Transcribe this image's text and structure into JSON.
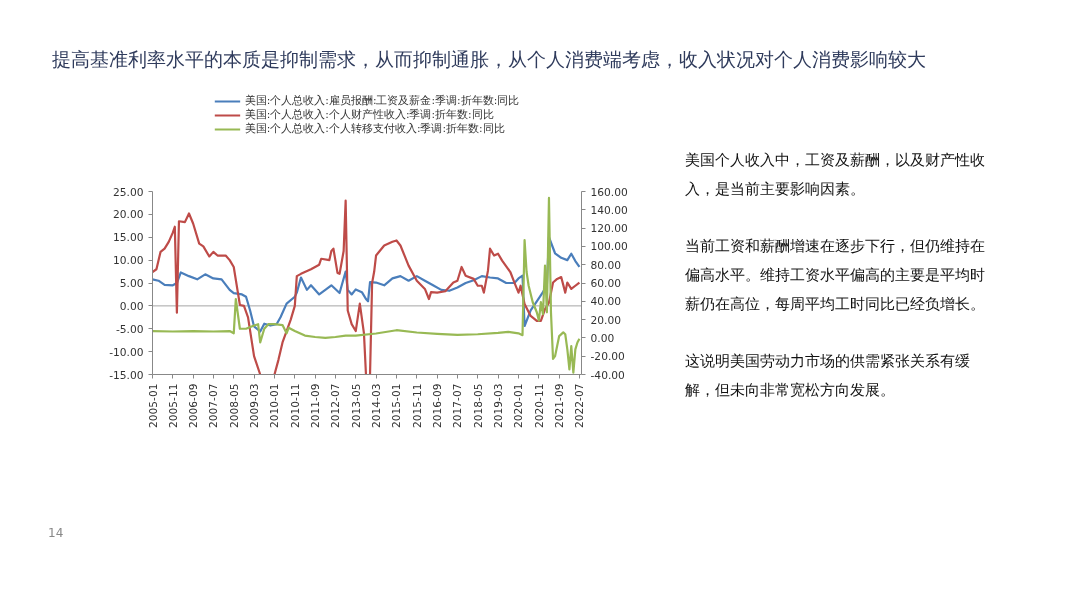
{
  "chart_data": {
    "type": "line",
    "title": "提高基准利率水平的本质是抑制需求，从而抑制通胀，从个人消费端考虑，收入状况对个人消费影响较大",
    "annotations": [
      "美国个人收入中，工资及薪酬，以及财产性收入，是当前主要影响因素。",
      "当前工资和薪酬增速在逐步下行，但仍维持在偏高水平。维持工资水平偏高的主要是平均时薪仍在高位，每周平均工时同比已经负增长。",
      "这说明美国劳动力市场的供需紧张关系有缓解，但未向非常宽松方向发展。",
      "14"
    ],
    "series": [
      {
        "name": "美国:个人总收入:雇员报酬:工资及薪金:季调:折年数:同比",
        "color": "#4a7ebb",
        "x": [
          "2005-01",
          "2005-04",
          "2005-07",
          "2005-11",
          "2006-01",
          "2006-03",
          "2006-07",
          "2006-11",
          "2007-03",
          "2007-07",
          "2007-11",
          "2008-03",
          "2008-05",
          "2008-09",
          "2008-11",
          "2009-01",
          "2009-03",
          "2009-06",
          "2009-08",
          "2009-11",
          "2010-02",
          "2010-04",
          "2010-07",
          "2010-11",
          "2010-12",
          "2011-02",
          "2011-05",
          "2011-07",
          "2011-11",
          "2012-02",
          "2012-05",
          "2012-09",
          "2012-12",
          "2013-01",
          "2013-03",
          "2013-05",
          "2013-08",
          "2013-10",
          "2013-11",
          "2013-12",
          "2014-03",
          "2014-07",
          "2014-11",
          "2015-03",
          "2015-07",
          "2015-11",
          "2016-03",
          "2016-07",
          "2016-11",
          "2017-03",
          "2017-07",
          "2017-11",
          "2018-03",
          "2018-07",
          "2018-11",
          "2019-03",
          "2019-07",
          "2019-11",
          "2020-01",
          "2020-03",
          "2020-04",
          "2020-07",
          "2020-10",
          "2021-01",
          "2021-03",
          "2021-04",
          "2021-07",
          "2021-10",
          "2022-01",
          "2022-03",
          "2022-05",
          "2022-07"
        ],
        "values": [
          5.8,
          5.5,
          4.6,
          4.5,
          5,
          7.3,
          6.5,
          5.8,
          6.9,
          6,
          5.8,
          3.5,
          2.8,
          2.5,
          2,
          -1,
          -4.5,
          -5.6,
          -3.9,
          -4.3,
          -4,
          -2.5,
          0.5,
          2,
          2.9,
          6.2,
          3.5,
          4.5,
          2.5,
          3.5,
          4.5,
          2.8,
          7.5,
          3.5,
          2.5,
          3.6,
          3,
          1.5,
          1,
          5.2,
          5.1,
          4.5,
          6,
          6.5,
          5.5,
          6.5,
          5.5,
          4.5,
          3.5,
          3.3,
          4,
          5,
          5.6,
          6.5,
          6.2,
          6,
          5,
          5,
          6,
          6.6,
          -4.4,
          -1,
          1,
          3,
          4.5,
          15,
          11.5,
          10.5,
          10,
          11.4,
          9.8,
          8.5
        ]
      },
      {
        "name": "美国:个人总收入:个人财产性收入:季调:折年数:同比",
        "color": "#be4b48",
        "x": [
          "2005-01",
          "2005-03",
          "2005-05",
          "2005-07",
          "2005-09",
          "2005-11",
          "2005-12",
          "2006-01",
          "2006-02",
          "2006-05",
          "2006-07",
          "2006-09",
          "2006-12",
          "2007-02",
          "2007-05",
          "2007-07",
          "2007-09",
          "2008-01",
          "2008-03",
          "2008-05",
          "2008-07",
          "2008-08",
          "2008-10",
          "2008-12",
          "2009-03",
          "2009-06",
          "2009-09",
          "2010-01",
          "2010-03",
          "2010-05",
          "2010-07",
          "2010-09",
          "2010-11",
          "2010-12",
          "2011-02",
          "2011-07",
          "2011-11",
          "2011-12",
          "2012-04",
          "2012-05",
          "2012-06",
          "2012-08",
          "2012-09",
          "2012-11",
          "2012-12",
          "2013-01",
          "2013-03",
          "2013-05",
          "2013-07",
          "2013-09",
          "2013-10",
          "2013-11",
          "2013-12",
          "2014-01",
          "2014-02",
          "2014-03",
          "2014-07",
          "2014-11",
          "2015-01",
          "2015-03",
          "2015-07",
          "2015-11",
          "2016-03",
          "2016-05",
          "2016-06",
          "2016-09",
          "2017-01",
          "2017-05",
          "2017-07",
          "2017-09",
          "2017-11",
          "2018-03",
          "2018-05",
          "2018-07",
          "2018-08",
          "2018-10",
          "2018-11",
          "2019-01",
          "2019-03",
          "2019-05",
          "2019-09",
          "2019-11",
          "2020-01",
          "2020-02",
          "2020-04",
          "2020-07",
          "2020-10",
          "2020-12",
          "2021-02",
          "2021-04",
          "2021-06",
          "2021-08",
          "2021-10",
          "2021-12",
          "2022-01",
          "2022-03",
          "2022-05",
          "2022-07"
        ],
        "values": [
          7.4,
          8,
          11.8,
          12.5,
          14,
          16,
          17.3,
          -1.5,
          18.5,
          18.3,
          20.2,
          18,
          13.6,
          13,
          10.8,
          11.8,
          11,
          11,
          10,
          8.5,
          3,
          0.2,
          0,
          -2.5,
          -11,
          -15,
          null,
          -15,
          -11.8,
          -8,
          -5.5,
          -3,
          0,
          6.5,
          7,
          8,
          9,
          10.3,
          10,
          12,
          12.5,
          7.2,
          7,
          12,
          23,
          -1,
          -4,
          -5.5,
          0.5,
          -6,
          -15,
          null,
          -15,
          5,
          7.5,
          11,
          13.2,
          14,
          14.3,
          13.2,
          8.8,
          5.5,
          3.7,
          1.5,
          3,
          2.9,
          3.2,
          5.1,
          5.5,
          8.5,
          6.6,
          5.9,
          4.4,
          4.4,
          2.9,
          7.7,
          12.5,
          11,
          11.4,
          9.9,
          7.4,
          5.1,
          2.9,
          4.4,
          0.4,
          -2.2,
          -3.3,
          -3.3,
          -0.7,
          0.7,
          5.1,
          5.9,
          6.3,
          2.9,
          5.1,
          3.7,
          4.4,
          5.1
        ]
      },
      {
        "name": "美国:个人总收入:个人转移支付收入:季调:折年数:同比",
        "color": "#98b954",
        "axis": "y2",
        "x": [
          "2005-01",
          "2005-11",
          "2006-09",
          "2007-07",
          "2008-03",
          "2008-05",
          "2008-06",
          "2008-08",
          "2008-11",
          "2009-03",
          "2009-05",
          "2009-06",
          "2009-08",
          "2009-10",
          "2010-01",
          "2010-05",
          "2010-07",
          "2010-08",
          "2010-11",
          "2011-04",
          "2011-09",
          "2012-02",
          "2012-07",
          "2012-12",
          "2013-05",
          "2014-03",
          "2015-01",
          "2015-11",
          "2016-09",
          "2017-07",
          "2018-05",
          "2019-03",
          "2019-08",
          "2020-01",
          "2020-03",
          "2020-04",
          "2020-05",
          "2020-06",
          "2020-08",
          "2020-10",
          "2020-11",
          "2020-12",
          "2021-01",
          "2021-02",
          "2021-03",
          "2021-04",
          "2021-05",
          "2021-06",
          "2021-07",
          "2021-09",
          "2021-11",
          "2021-12",
          "2022-01",
          "2022-02",
          "2022-03",
          "2022-04",
          "2022-05",
          "2022-06",
          "2022-07"
        ],
        "values": [
          7.5,
          7,
          7.5,
          7,
          7.5,
          5,
          42.5,
          10,
          10,
          13.5,
          15,
          -5,
          10,
          15,
          15,
          14,
          5,
          11,
          7.5,
          2.5,
          1,
          0,
          1,
          2.5,
          2.5,
          4.8,
          8.4,
          5.9,
          4.5,
          3.3,
          4,
          5.5,
          6.6,
          5,
          3,
          107,
          72,
          57,
          39,
          28,
          19,
          39,
          26,
          79,
          28,
          153,
          28,
          -23,
          -20,
          2,
          6,
          4,
          -12.5,
          -34.5,
          -9,
          -38,
          -12.5,
          -5,
          -1
        ]
      }
    ],
    "xlim": [
      "2005-01",
      "2022-08"
    ],
    "xticks": [
      {
        "value": "2005-01",
        "label": "2005-01"
      },
      {
        "value": "2005-11",
        "label": "2005-11"
      },
      {
        "value": "2006-09",
        "label": "2006-09"
      },
      {
        "value": "2007-07",
        "label": "2007-07"
      },
      {
        "value": "2008-05",
        "label": "2008-05"
      },
      {
        "value": "2009-03",
        "label": "2009-03"
      },
      {
        "value": "2010-01",
        "label": "2010-01"
      },
      {
        "value": "2010-11",
        "label": "2010-11"
      },
      {
        "value": "2011-09",
        "label": "2011-09"
      },
      {
        "value": "2012-07",
        "label": "2012-07"
      },
      {
        "value": "2013-05",
        "label": "2013-05"
      },
      {
        "value": "2014-03",
        "label": "2014-03"
      },
      {
        "value": "2015-01",
        "label": "2015-01"
      },
      {
        "value": "2015-11",
        "label": "2015-11"
      },
      {
        "value": "2016-09",
        "label": "2016-09"
      },
      {
        "value": "2017-07",
        "label": "2017-07"
      },
      {
        "value": "2018-05",
        "label": "2018-05"
      },
      {
        "value": "2019-03",
        "label": "2019-03"
      },
      {
        "value": "2020-01",
        "label": "2020-01"
      },
      {
        "value": "2020-11",
        "label": "2020-11"
      },
      {
        "value": "2021-09",
        "label": "2021-09"
      },
      {
        "value": "2022-07",
        "label": "2022-07"
      }
    ],
    "ylim": [
      -15,
      25
    ],
    "yticks": [
      {
        "value": -15,
        "label": "-15.00"
      },
      {
        "value": -10,
        "label": "-10.00"
      },
      {
        "value": -5,
        "label": "-5.00"
      },
      {
        "value": 0,
        "label": "0.00"
      },
      {
        "value": 5,
        "label": "5.00"
      },
      {
        "value": 10,
        "label": "10.00"
      },
      {
        "value": 15,
        "label": "15.00"
      },
      {
        "value": 20,
        "label": "20.00"
      },
      {
        "value": 25,
        "label": "25.00"
      }
    ],
    "y2lim": [
      -40,
      160
    ],
    "y2ticks": [
      {
        "value": -40,
        "label": "-40.00"
      },
      {
        "value": -20,
        "label": "-20.00"
      },
      {
        "value": 0,
        "label": "0.00"
      },
      {
        "value": 20,
        "label": "20.00"
      },
      {
        "value": 40,
        "label": "40.00"
      },
      {
        "value": 60,
        "label": "60.00"
      },
      {
        "value": 80,
        "label": "80.00"
      },
      {
        "value": 100,
        "label": "100.00"
      },
      {
        "value": 120,
        "label": "120.00"
      },
      {
        "value": 140,
        "label": "140.00"
      },
      {
        "value": 160,
        "label": "160.00"
      }
    ],
    "ref_lines": [
      {
        "axis": "y",
        "value": 0,
        "color": "#a6a6a6"
      }
    ],
    "legend": "top",
    "grid": false,
    "marker": "none",
    "line_style": "solid"
  }
}
